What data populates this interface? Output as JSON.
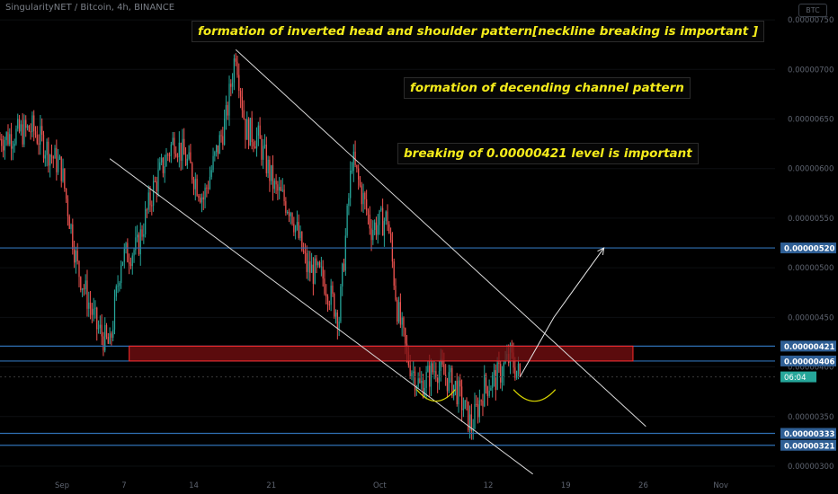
{
  "header": {
    "title": "SingularityNET / Bitcoin, 4h, BINANCE",
    "button_label": "BTC"
  },
  "annotations": [
    "formation of inverted head and shoulder pattern[neckline breaking is important ]",
    "formation of decending channel pattern",
    "breaking of 0.00000421 level is important"
  ],
  "colors": {
    "background": "#000000",
    "candle_up": "#26a69a",
    "candle_down": "#ef5350",
    "level_line": "#2f6fb3",
    "level_label_bg": "#2f5f95",
    "zone_fill": "#7a0f12",
    "zone_border": "#ff2a2a",
    "annotation_text": "#f5ec1b",
    "shoulder_arc": "#d9d600",
    "current_price_tag": "#26a69a"
  },
  "chart_data": {
    "type": "candlestick",
    "symbol": "SingularityNET / Bitcoin",
    "interval": "4h",
    "exchange": "BINANCE",
    "y_axis_ticks": [
      "0.00000750",
      "0.00000700",
      "0.00000650",
      "0.00000600",
      "0.00000550",
      "0.00000500",
      "0.00000450",
      "0.00000400",
      "0.00000350",
      "0.00000300"
    ],
    "x_axis_ticks": [
      "Sep",
      "7",
      "14",
      "21",
      "Oct",
      "12",
      "19",
      "26",
      "Nov"
    ],
    "ylim": [
      2.9e-06,
      7.7e-06
    ],
    "horizontal_levels": [
      {
        "value": 5.2e-06,
        "label": "0.00000520"
      },
      {
        "value": 4.21e-06,
        "label": "0.00000421"
      },
      {
        "value": 4.06e-06,
        "label": "0.00000406"
      },
      {
        "value": 3.33e-06,
        "label": "0.00000333"
      },
      {
        "value": 3.21e-06,
        "label": "0.00000321"
      }
    ],
    "current_price_tag": "06:04",
    "resistance_zone": {
      "from": 4.06e-06,
      "to": 4.21e-06
    },
    "price_series": {
      "start_value": 6.3e-06,
      "anchors": [
        [
          0,
          6.3e-06
        ],
        [
          20,
          6.4e-06
        ],
        [
          38,
          6e-06
        ],
        [
          48,
          5e-06
        ],
        [
          60,
          4.4e-06
        ],
        [
          68,
          4.2e-06
        ],
        [
          75,
          5.1e-06
        ],
        [
          85,
          5.2e-06
        ],
        [
          95,
          5.8e-06
        ],
        [
          108,
          6.3e-06
        ],
        [
          118,
          6e-06
        ],
        [
          126,
          5.7e-06
        ],
        [
          140,
          6.5e-06
        ],
        [
          146,
          7.2e-06
        ],
        [
          152,
          6.4e-06
        ],
        [
          160,
          6.3e-06
        ],
        [
          170,
          5.8e-06
        ],
        [
          180,
          5.6e-06
        ],
        [
          190,
          5e-06
        ],
        [
          200,
          4.9e-06
        ],
        [
          210,
          4.5e-06
        ],
        [
          218,
          6.1e-06
        ],
        [
          230,
          5.4e-06
        ],
        [
          240,
          5.5e-06
        ],
        [
          246,
          4.6e-06
        ],
        [
          252,
          4.1e-06
        ],
        [
          260,
          3.8e-06
        ],
        [
          270,
          4e-06
        ],
        [
          282,
          3.8e-06
        ],
        [
          292,
          3.4e-06
        ],
        [
          300,
          3.8e-06
        ],
        [
          308,
          3.9e-06
        ],
        [
          316,
          4.1e-06
        ],
        [
          322,
          3.9e-06
        ]
      ]
    },
    "trend_lines": [
      {
        "name": "channel-upper",
        "from": {
          "bar": 146,
          "value": 7.2e-06
        },
        "to": {
          "bar": 400,
          "value": 3.4e-06
        }
      },
      {
        "name": "channel-lower",
        "from": {
          "bar": 68,
          "value": 6.1e-06
        },
        "to": {
          "bar": 330,
          "value": 2.92e-06
        }
      },
      {
        "name": "projection-arrow",
        "from": {
          "bar": 322,
          "value": 3.9e-06
        },
        "mid": {
          "bar": 343,
          "value": 4.5e-06
        },
        "to": {
          "bar": 374,
          "value": 5.2e-06
        }
      }
    ],
    "pattern_arcs": [
      {
        "name": "left-shoulder",
        "start_bar": 258,
        "end_bar": 282
      },
      {
        "name": "right-shoulder",
        "start_bar": 318,
        "end_bar": 344
      }
    ],
    "axis_bars": {
      "first": 0,
      "last": 480
    }
  }
}
